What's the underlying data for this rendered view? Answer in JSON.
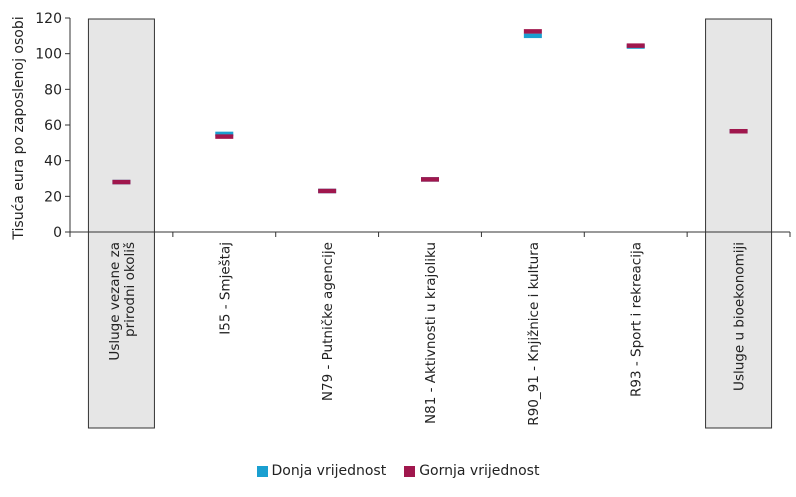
{
  "chart_data": {
    "type": "scatter",
    "title": "",
    "ylabel": "Tisuća eura po zaposlenoj osobi",
    "xlabel": "",
    "ylim": [
      0,
      120
    ],
    "yticks": [
      0,
      20,
      40,
      60,
      80,
      100,
      120
    ],
    "grid": false,
    "legend_position": "bottom",
    "categories": [
      {
        "label": "Usluge vezane za prirodni okoliš",
        "lines": [
          "Usluge vezane za",
          "prirodni okoliš"
        ],
        "highlight": true
      },
      {
        "label": "I55 - Smještaj",
        "lines": [
          "I55 - Smještaj"
        ],
        "highlight": false
      },
      {
        "label": "N79 - Putničke agencije",
        "lines": [
          "N79 - Putničke agencije"
        ],
        "highlight": false
      },
      {
        "label": "N81 - Aktivnosti u krajoliku",
        "lines": [
          "N81 - Aktivnosti u krajoliku"
        ],
        "highlight": false
      },
      {
        "label": "R90_91 - Knjižnice i kultura",
        "lines": [
          "R90_91 - Knjižnice i kultura"
        ],
        "highlight": false
      },
      {
        "label": "R93 - Sport i rekreacija",
        "lines": [
          "R93 - Sport i rekreacija"
        ],
        "highlight": false
      },
      {
        "label": "Usluge u bioekonomiji",
        "lines": [
          "Usluge u bioekonomiji"
        ],
        "highlight": true
      }
    ],
    "series": [
      {
        "name": "Donja vrijednost",
        "color": "#1a9fd0",
        "values": [
          28,
          55,
          23,
          29.5,
          110,
          104,
          56.5
        ]
      },
      {
        "name": "Gornja vrijednost",
        "color": "#a0174d",
        "values": [
          28,
          53.5,
          23,
          29.5,
          112.5,
          104.5,
          56.5
        ]
      }
    ],
    "highlight_fill": "#e6e6e6"
  }
}
